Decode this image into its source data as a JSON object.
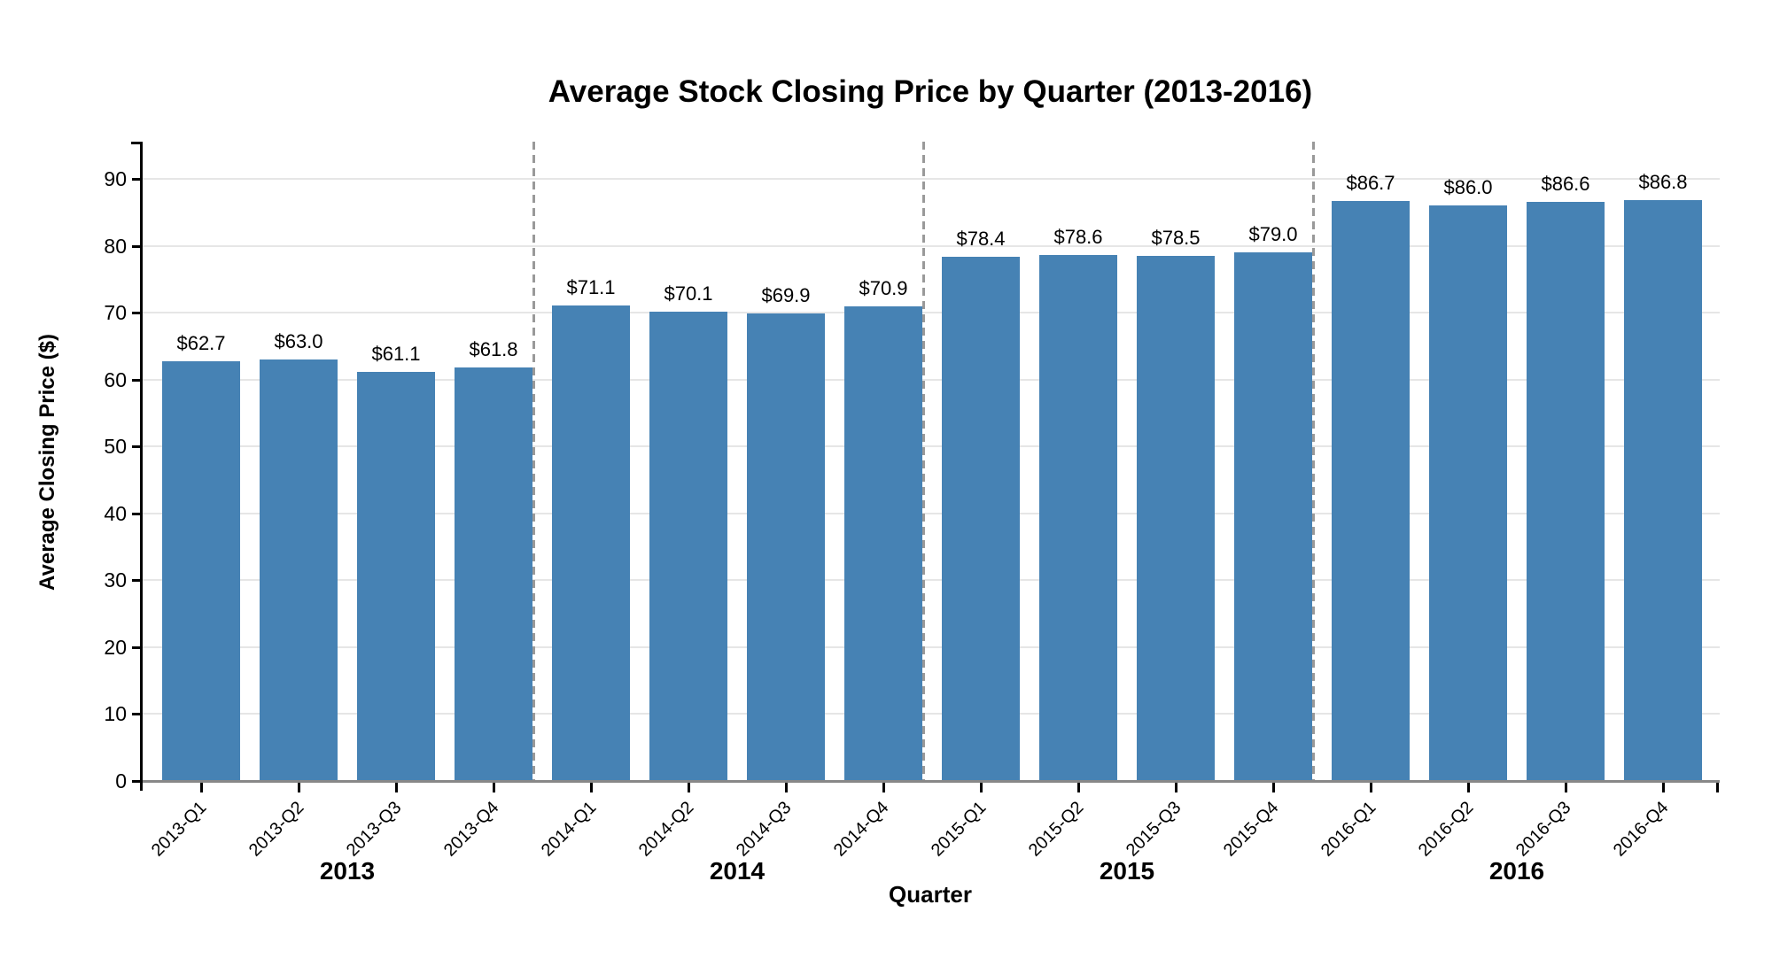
{
  "chart_data": {
    "type": "bar",
    "title": "Average Stock Closing Price by Quarter (2013-2016)",
    "xlabel": "Quarter",
    "ylabel": "Average Closing Price ($)",
    "ylim": [
      0,
      95
    ],
    "y_ticks": [
      0,
      10,
      20,
      30,
      40,
      50,
      60,
      70,
      80,
      90
    ],
    "grid": true,
    "legend": "none",
    "categories": [
      "2013-Q1",
      "2013-Q2",
      "2013-Q3",
      "2013-Q4",
      "2014-Q1",
      "2014-Q2",
      "2014-Q3",
      "2014-Q4",
      "2015-Q1",
      "2015-Q2",
      "2015-Q3",
      "2015-Q4",
      "2016-Q1",
      "2016-Q2",
      "2016-Q3",
      "2016-Q4"
    ],
    "values": [
      62.7,
      63.0,
      61.1,
      61.8,
      71.1,
      70.1,
      69.9,
      70.9,
      78.4,
      78.6,
      78.5,
      79.0,
      86.7,
      86.0,
      86.6,
      86.8
    ],
    "bar_labels": [
      "$62.7",
      "$63.0",
      "$61.1",
      "$61.8",
      "$71.1",
      "$70.1",
      "$69.9",
      "$70.9",
      "$78.4",
      "$78.6",
      "$78.5",
      "$79.0",
      "$86.7",
      "$86.0",
      "$86.6",
      "$86.8"
    ],
    "year_groups": [
      "2013",
      "2014",
      "2015",
      "2016"
    ],
    "bar_color": "#4682B4",
    "separator_color": "#999999",
    "gridline_color": "#e6e6e6",
    "baseline_color": "#888888",
    "axis_color": "#000000"
  }
}
